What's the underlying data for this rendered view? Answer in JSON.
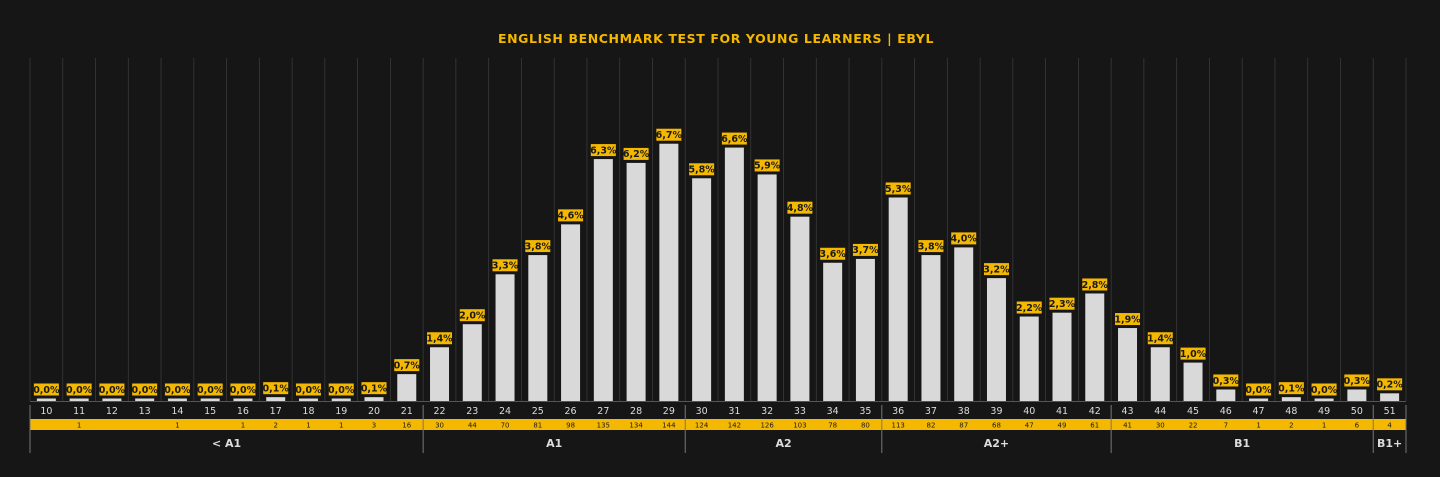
{
  "chart_data": {
    "type": "bar",
    "title": "ENGLISH BENCHMARK TEST FOR YOUNG LEARNERS | EBYL",
    "xlabel": "",
    "ylabel": "",
    "ylim": [
      0,
      7.5
    ],
    "grid": true,
    "legend": "none",
    "colors": {
      "background": "#161616",
      "bar": "#d9d9d9",
      "accent": "#f5b800",
      "grid": "#3a3a3a",
      "text_dark": "#1a1a1a",
      "text_light": "#dddddd",
      "divider": "#777777"
    },
    "categories": [
      "10",
      "11",
      "12",
      "13",
      "14",
      "15",
      "16",
      "17",
      "18",
      "19",
      "20",
      "21",
      "22",
      "23",
      "24",
      "25",
      "26",
      "27",
      "28",
      "29",
      "30",
      "31",
      "32",
      "33",
      "34",
      "35",
      "36",
      "37",
      "38",
      "39",
      "40",
      "41",
      "42",
      "43",
      "44",
      "45",
      "46",
      "47",
      "48",
      "49",
      "50",
      "51"
    ],
    "values": [
      0.0,
      0.0,
      0.0,
      0.0,
      0.0,
      0.0,
      0.0,
      0.1,
      0.0,
      0.0,
      0.1,
      0.7,
      1.4,
      2.0,
      3.3,
      3.8,
      4.6,
      6.3,
      6.2,
      6.7,
      5.8,
      6.6,
      5.9,
      4.8,
      3.6,
      3.7,
      5.3,
      3.8,
      4.0,
      3.2,
      2.2,
      2.3,
      2.8,
      1.9,
      1.4,
      1.0,
      0.3,
      0.0,
      0.1,
      0.0,
      0.3,
      0.2
    ],
    "value_labels": [
      "0,0%",
      "0,0%",
      "0,0%",
      "0,0%",
      "0,0%",
      "0,0%",
      "0,0%",
      "0,1%",
      "0,0%",
      "0,0%",
      "0,1%",
      "0,7%",
      "1,4%",
      "2,0%",
      "3,3%",
      "3,8%",
      "4,6%",
      "6,3%",
      "6,2%",
      "6,7%",
      "5,8%",
      "6,6%",
      "5,9%",
      "4,8%",
      "3,6%",
      "3,7%",
      "5,3%",
      "3,8%",
      "4,0%",
      "3,2%",
      "2,2%",
      "2,3%",
      "2,8%",
      "1,9%",
      "1,4%",
      "1,0%",
      "0,3%",
      "0,0%",
      "0,1%",
      "0,0%",
      "0,3%",
      "0,2%"
    ],
    "counts": [
      "",
      "1",
      "",
      "",
      "1",
      "",
      "1",
      "2",
      "1",
      "1",
      "3",
      "16",
      "30",
      "44",
      "70",
      "81",
      "98",
      "135",
      "134",
      "144",
      "124",
      "142",
      "126",
      "103",
      "78",
      "80",
      "113",
      "82",
      "87",
      "68",
      "47",
      "49",
      "61",
      "41",
      "30",
      "22",
      "7",
      "1",
      "2",
      "1",
      "6",
      "4"
    ],
    "levels": [
      {
        "label": "< A1",
        "from": "10",
        "to": "21"
      },
      {
        "label": "A1",
        "from": "22",
        "to": "29"
      },
      {
        "label": "A2",
        "from": "30",
        "to": "35"
      },
      {
        "label": "A2+",
        "from": "36",
        "to": "42"
      },
      {
        "label": "B1",
        "from": "43",
        "to": "50"
      },
      {
        "label": "B1+",
        "from": "51",
        "to": "51"
      }
    ]
  }
}
